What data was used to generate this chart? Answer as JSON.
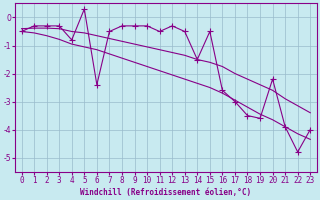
{
  "xlabel": "Windchill (Refroidissement éolien,°C)",
  "x": [
    0,
    1,
    2,
    3,
    4,
    5,
    6,
    7,
    8,
    9,
    10,
    11,
    12,
    13,
    14,
    15,
    16,
    17,
    18,
    19,
    20,
    21,
    22,
    23
  ],
  "y_main": [
    -0.5,
    -0.3,
    -0.3,
    -0.3,
    -0.8,
    0.3,
    -2.4,
    -0.5,
    -0.3,
    -0.3,
    -0.3,
    -0.5,
    -0.3,
    -0.5,
    -1.5,
    -0.5,
    -2.6,
    -3.0,
    -3.5,
    -3.6,
    -2.2,
    -3.9,
    -4.8,
    -4.0
  ],
  "y_line1": [
    -0.4,
    -0.38,
    -0.38,
    -0.4,
    -0.5,
    -0.55,
    -0.65,
    -0.75,
    -0.85,
    -0.95,
    -1.05,
    -1.15,
    -1.25,
    -1.35,
    -1.5,
    -1.6,
    -1.75,
    -2.0,
    -2.2,
    -2.4,
    -2.6,
    -2.9,
    -3.15,
    -3.4
  ],
  "y_line2": [
    -0.5,
    -0.55,
    -0.65,
    -0.78,
    -0.95,
    -1.05,
    -1.15,
    -1.3,
    -1.45,
    -1.6,
    -1.75,
    -1.9,
    -2.05,
    -2.2,
    -2.35,
    -2.5,
    -2.7,
    -2.95,
    -3.2,
    -3.45,
    -3.65,
    -3.9,
    -4.15,
    -4.35
  ],
  "color": "#880088",
  "bg_color": "#c8eaf0",
  "grid_color": "#99bbcc",
  "ylim": [
    -5.5,
    0.5
  ],
  "yticks": [
    0,
    -1,
    -2,
    -3,
    -4,
    -5
  ],
  "marker": "+",
  "markersize": 4,
  "linewidth": 0.8,
  "tick_fontsize": 5.5,
  "xlabel_fontsize": 5.5
}
